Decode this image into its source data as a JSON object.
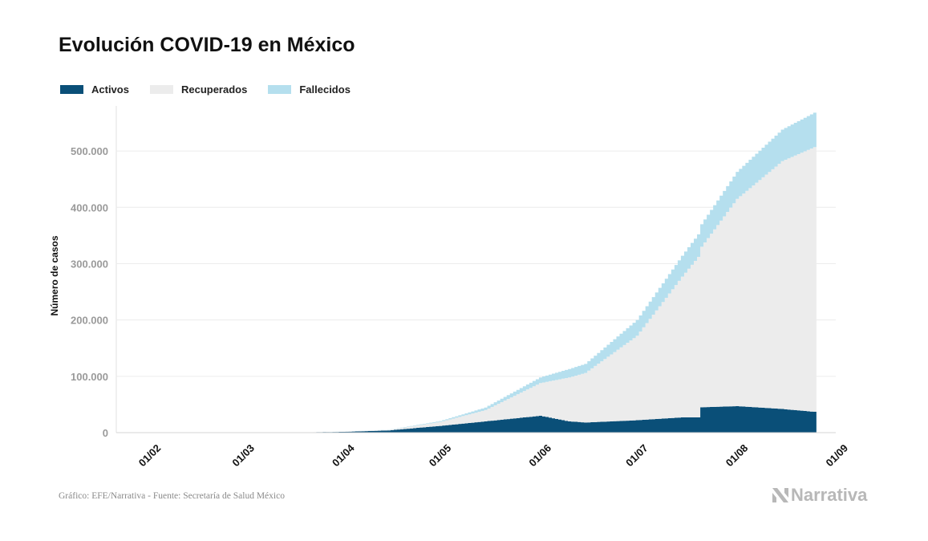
{
  "title": "Evolución COVID-19 en México",
  "legend": [
    {
      "label": "Activos",
      "color": "#0a4f78"
    },
    {
      "label": "Recuperados",
      "color": "#ececec"
    },
    {
      "label": "Fallecidos",
      "color": "#b5dfee"
    }
  ],
  "source": "Gráfico: EFE/Narrativa - Fuente: Secretaría de Salud México",
  "brand": "Narrativa",
  "chart_data": {
    "type": "area",
    "stacked": true,
    "ylabel": "Número de casos",
    "xlabel": "",
    "ylim": [
      0,
      580000
    ],
    "yticks": [
      0,
      100000,
      200000,
      300000,
      400000,
      500000
    ],
    "ytick_labels": [
      "0",
      "100.000",
      "200.000",
      "300.000",
      "400.000",
      "500.000"
    ],
    "xlim": [
      "2020-01-22",
      "2020-09-01"
    ],
    "xticks": [
      "2020-02-01",
      "2020-03-01",
      "2020-04-01",
      "2020-05-01",
      "2020-06-01",
      "2020-07-01",
      "2020-08-01",
      "2020-09-01"
    ],
    "xtick_labels": [
      "01/02",
      "01/03",
      "01/04",
      "01/05",
      "01/06",
      "01/07",
      "01/08",
      "01/09"
    ],
    "grid": "horizontal",
    "legend_position": "top-left",
    "x": [
      "2020-03-15",
      "2020-04-01",
      "2020-04-15",
      "2020-05-01",
      "2020-05-15",
      "2020-06-01",
      "2020-06-10",
      "2020-06-15",
      "2020-07-01",
      "2020-07-15",
      "2020-07-20",
      "2020-07-21",
      "2020-08-01",
      "2020-08-15",
      "2020-08-25"
    ],
    "series": [
      {
        "name": "Activos",
        "values": [
          50,
          1500,
          4000,
          12000,
          20000,
          30000,
          20000,
          18000,
          22000,
          27000,
          27000,
          45000,
          47000,
          42000,
          37000
        ]
      },
      {
        "name": "Recuperados",
        "values": [
          0,
          200,
          800,
          7000,
          20000,
          58000,
          78000,
          88000,
          150000,
          250000,
          285000,
          285000,
          368000,
          440000,
          470000
        ]
      },
      {
        "name": "Fallecidos",
        "values": [
          0,
          50,
          300,
          1500,
          4500,
          10000,
          15000,
          16000,
          28000,
          37000,
          40000,
          40000,
          48000,
          56000,
          61000
        ]
      }
    ]
  }
}
